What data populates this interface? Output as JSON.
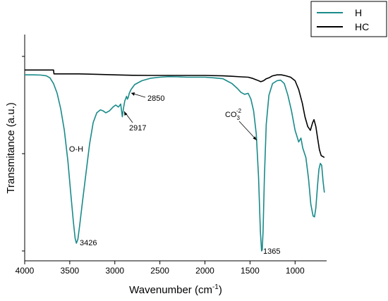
{
  "chart_data": {
    "type": "line",
    "title": "",
    "xlabel": "Wavenumber (cm",
    "xlabel_sup": "-1",
    "xlabel_end": ")",
    "ylabel": "Transmitance (a.u.)",
    "xlim": [
      4000,
      650
    ],
    "ylim": [
      0,
      1
    ],
    "x_reversed": true,
    "x_ticks": [
      4000,
      3500,
      3000,
      2500,
      2000,
      1500,
      1000
    ],
    "x_tick_labels": [
      "4000",
      "3500",
      "3000",
      "2500",
      "2000",
      "1500",
      "1000"
    ],
    "y_tick_labels_shown": false,
    "grid": false,
    "legend_position": "top-right",
    "series": [
      {
        "name": "H",
        "color": "#1a8a8a",
        "points": [
          [
            4000,
            0.905
          ],
          [
            3900,
            0.905
          ],
          [
            3820,
            0.904
          ],
          [
            3760,
            0.9
          ],
          [
            3720,
            0.89
          ],
          [
            3680,
            0.86
          ],
          [
            3640,
            0.81
          ],
          [
            3600,
            0.73
          ],
          [
            3560,
            0.62
          ],
          [
            3520,
            0.46
          ],
          [
            3490,
            0.3
          ],
          [
            3460,
            0.15
          ],
          [
            3440,
            0.065
          ],
          [
            3426,
            0.04
          ],
          [
            3410,
            0.06
          ],
          [
            3390,
            0.13
          ],
          [
            3360,
            0.25
          ],
          [
            3320,
            0.4
          ],
          [
            3280,
            0.55
          ],
          [
            3240,
            0.66
          ],
          [
            3200,
            0.71
          ],
          [
            3160,
            0.725
          ],
          [
            3130,
            0.72
          ],
          [
            3100,
            0.71
          ],
          [
            3060,
            0.72
          ],
          [
            3020,
            0.74
          ],
          [
            2990,
            0.75
          ],
          [
            2960,
            0.74
          ],
          [
            2935,
            0.755
          ],
          [
            2917,
            0.69
          ],
          [
            2905,
            0.73
          ],
          [
            2890,
            0.77
          ],
          [
            2870,
            0.795
          ],
          [
            2860,
            0.78
          ],
          [
            2850,
            0.79
          ],
          [
            2840,
            0.81
          ],
          [
            2820,
            0.83
          ],
          [
            2780,
            0.855
          ],
          [
            2700,
            0.875
          ],
          [
            2600,
            0.888
          ],
          [
            2500,
            0.893
          ],
          [
            2400,
            0.896
          ],
          [
            2300,
            0.895
          ],
          [
            2200,
            0.893
          ],
          [
            2100,
            0.893
          ],
          [
            2000,
            0.893
          ],
          [
            1900,
            0.89
          ],
          [
            1800,
            0.885
          ],
          [
            1760,
            0.875
          ],
          [
            1700,
            0.86
          ],
          [
            1640,
            0.835
          ],
          [
            1600,
            0.815
          ],
          [
            1560,
            0.805
          ],
          [
            1520,
            0.81
          ],
          [
            1490,
            0.78
          ],
          [
            1460,
            0.72
          ],
          [
            1430,
            0.6
          ],
          [
            1405,
            0.38
          ],
          [
            1385,
            0.1
          ],
          [
            1372,
            0.0
          ],
          [
            1365,
            0.005
          ],
          [
            1355,
            0.1
          ],
          [
            1340,
            0.38
          ],
          [
            1320,
            0.65
          ],
          [
            1290,
            0.8
          ],
          [
            1250,
            0.86
          ],
          [
            1200,
            0.875
          ],
          [
            1160,
            0.878
          ],
          [
            1120,
            0.86
          ],
          [
            1080,
            0.8
          ],
          [
            1040,
            0.72
          ],
          [
            1000,
            0.62
          ],
          [
            960,
            0.56
          ],
          [
            935,
            0.58
          ],
          [
            915,
            0.53
          ],
          [
            880,
            0.48
          ],
          [
            850,
            0.37
          ],
          [
            825,
            0.24
          ],
          [
            800,
            0.18
          ],
          [
            785,
            0.175
          ],
          [
            770,
            0.22
          ],
          [
            750,
            0.34
          ],
          [
            735,
            0.42
          ],
          [
            720,
            0.45
          ],
          [
            705,
            0.44
          ],
          [
            690,
            0.36
          ],
          [
            675,
            0.3
          ]
        ]
      },
      {
        "name": "HC",
        "color": "#000000",
        "points": [
          [
            4000,
            0.93
          ],
          [
            3700,
            0.93
          ],
          [
            3680,
            0.93
          ],
          [
            3675,
            0.91
          ],
          [
            3600,
            0.91
          ],
          [
            3400,
            0.91
          ],
          [
            3200,
            0.908
          ],
          [
            3000,
            0.905
          ],
          [
            2800,
            0.903
          ],
          [
            2600,
            0.902
          ],
          [
            2400,
            0.902
          ],
          [
            2200,
            0.902
          ],
          [
            2000,
            0.902
          ],
          [
            1800,
            0.9
          ],
          [
            1700,
            0.898
          ],
          [
            1600,
            0.895
          ],
          [
            1520,
            0.893
          ],
          [
            1470,
            0.887
          ],
          [
            1420,
            0.878
          ],
          [
            1380,
            0.87
          ],
          [
            1350,
            0.875
          ],
          [
            1320,
            0.885
          ],
          [
            1290,
            0.89
          ],
          [
            1250,
            0.9
          ],
          [
            1200,
            0.905
          ],
          [
            1150,
            0.905
          ],
          [
            1100,
            0.9
          ],
          [
            1050,
            0.893
          ],
          [
            1000,
            0.875
          ],
          [
            960,
            0.83
          ],
          [
            920,
            0.76
          ],
          [
            890,
            0.69
          ],
          [
            860,
            0.64
          ],
          [
            830,
            0.62
          ],
          [
            805,
            0.66
          ],
          [
            790,
            0.675
          ],
          [
            770,
            0.64
          ],
          [
            750,
            0.58
          ],
          [
            730,
            0.52
          ],
          [
            710,
            0.49
          ],
          [
            690,
            0.485
          ],
          [
            675,
            0.48
          ]
        ]
      }
    ],
    "annotations": [
      {
        "text": "O-H",
        "x": 3440,
        "y": 0.5,
        "arrow": false
      },
      {
        "text": "3426",
        "x": 3426,
        "y": 0.04,
        "arrow": false
      },
      {
        "text": "2917",
        "x": 2917,
        "y": 0.69,
        "arrow": true
      },
      {
        "text": "2850",
        "x": 2850,
        "y": 0.79,
        "arrow": true
      },
      {
        "text": "1365",
        "x": 1365,
        "y": 0.005,
        "arrow": false
      },
      {
        "text": "CO3-2",
        "main": "CO",
        "sub": "3",
        "sup": "-2",
        "x": 1380,
        "y": 0.55,
        "arrow": true
      }
    ]
  }
}
